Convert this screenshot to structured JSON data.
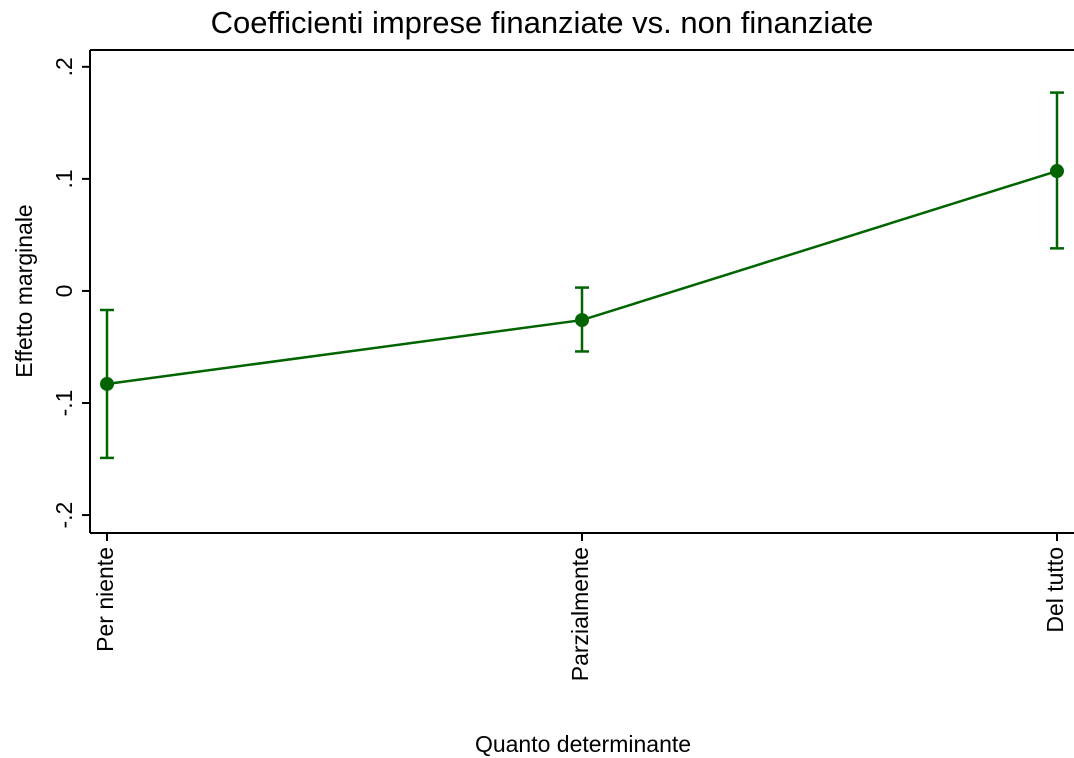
{
  "chart_data": {
    "type": "line",
    "title": "Coefficienti imprese finanziate vs. non finanziate",
    "x_label": "Quanto determinante",
    "y_label": "Effetto marginale",
    "categories": [
      "Per niente",
      "Parzialmente",
      "Del tutto"
    ],
    "series": [
      {
        "color": "#006400",
        "values": [
          -0.083,
          -0.026,
          0.107
        ],
        "lower": [
          -0.149,
          -0.054,
          0.038
        ],
        "upper": [
          -0.017,
          0.003,
          0.177
        ]
      }
    ],
    "ylim": [
      -0.216,
      0.215
    ],
    "yticks": [
      {
        "value": -0.2,
        "label": "-.2"
      },
      {
        "value": -0.1,
        "label": "-.1"
      },
      0,
      {
        "value": 0.1,
        "label": ".1"
      },
      {
        "value": 0.2,
        "label": ".2"
      }
    ],
    "grid": false
  }
}
